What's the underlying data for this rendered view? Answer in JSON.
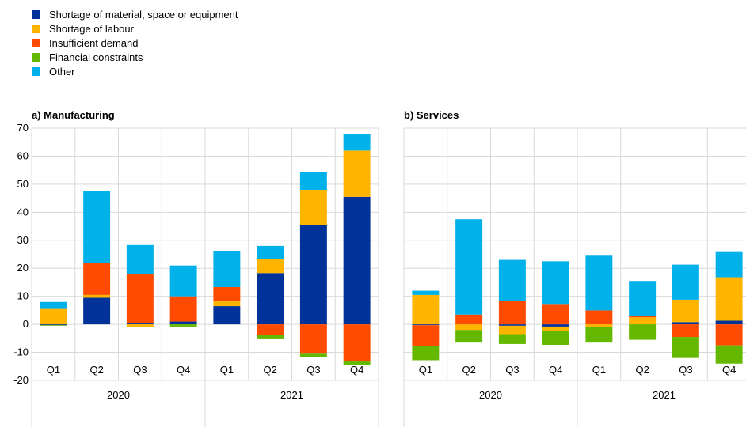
{
  "legend": [
    {
      "name": "Shortage of material, space or equipment",
      "color": "#003299"
    },
    {
      "name": "Shortage of labour",
      "color": "#FFB400"
    },
    {
      "name": "Insufficient demand",
      "color": "#FF4B00"
    },
    {
      "name": "Financial constraints",
      "color": "#65B800"
    },
    {
      "name": "Other",
      "color": "#00B1EA"
    }
  ],
  "chart_data": [
    {
      "type": "bar",
      "stacked": true,
      "title": "a) Manufacturing",
      "categories": [
        "Q1",
        "Q2",
        "Q3",
        "Q4",
        "Q1",
        "Q2",
        "Q3",
        "Q4"
      ],
      "groups": [
        {
          "label": "2020",
          "span": 4
        },
        {
          "label": "2021",
          "span": 4
        }
      ],
      "ylim": [
        -20,
        70
      ],
      "yticks": [
        -20,
        -10,
        0,
        10,
        20,
        30,
        40,
        50,
        60,
        70
      ],
      "grid": true,
      "series": [
        {
          "name": "Shortage of material, space or equipment",
          "values": [
            -0.3,
            9.5,
            0.3,
            1.0,
            6.5,
            18.3,
            35.5,
            45.5
          ]
        },
        {
          "name": "Shortage of labour",
          "values": [
            5.5,
            1.0,
            -1.0,
            0.0,
            1.8,
            5.0,
            12.5,
            16.5
          ]
        },
        {
          "name": "Insufficient demand",
          "values": [
            0.0,
            11.5,
            17.5,
            9.0,
            5.0,
            -3.8,
            -10.5,
            -13.0
          ]
        },
        {
          "name": "Financial constraints",
          "values": [
            -0.2,
            0.0,
            0.0,
            -0.8,
            0.0,
            -1.5,
            -1.2,
            -1.5
          ]
        },
        {
          "name": "Other",
          "values": [
            2.5,
            25.5,
            10.5,
            11.0,
            12.7,
            4.7,
            6.2,
            6.0
          ]
        }
      ]
    },
    {
      "type": "bar",
      "stacked": true,
      "title": "b) Services",
      "categories": [
        "Q1",
        "Q2",
        "Q3",
        "Q4",
        "Q1",
        "Q2",
        "Q3",
        "Q4"
      ],
      "groups": [
        {
          "label": "2020",
          "span": 4
        },
        {
          "label": "2021",
          "span": 4
        }
      ],
      "ylim": [
        -20,
        70
      ],
      "grid": true,
      "series": [
        {
          "name": "Shortage of material, space or equipment",
          "values": [
            -0.3,
            0.0,
            -0.5,
            -0.8,
            0.0,
            0.0,
            0.8,
            1.3
          ]
        },
        {
          "name": "Shortage of labour",
          "values": [
            10.5,
            -2.0,
            -3.0,
            -1.5,
            -1.0,
            2.5,
            8.0,
            15.5
          ]
        },
        {
          "name": "Insufficient demand",
          "values": [
            -7.5,
            3.5,
            8.5,
            7.0,
            5.0,
            0.5,
            -4.5,
            -7.5
          ]
        },
        {
          "name": "Financial constraints",
          "values": [
            -5.0,
            -4.5,
            -3.5,
            -5.0,
            -5.5,
            -5.5,
            -7.5,
            -6.5
          ]
        },
        {
          "name": "Other",
          "values": [
            1.5,
            34.0,
            14.5,
            15.5,
            19.5,
            12.5,
            12.5,
            9.0
          ]
        }
      ]
    }
  ]
}
